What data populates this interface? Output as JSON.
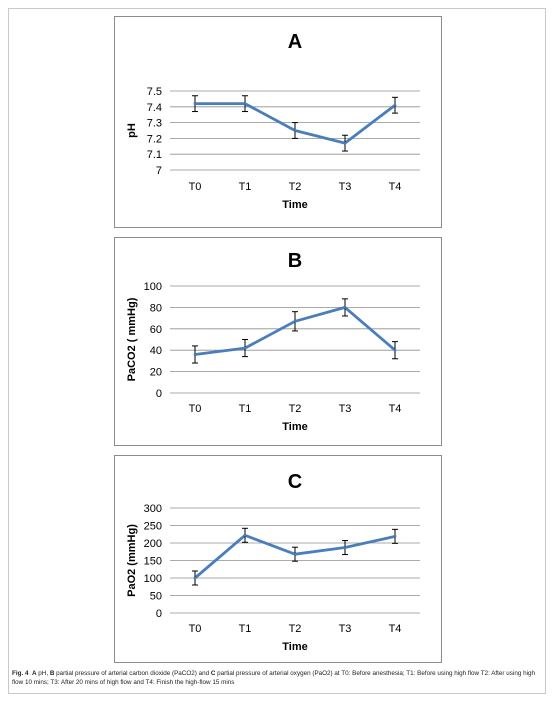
{
  "chart_data": [
    {
      "type": "line",
      "title": "A",
      "xlabel": "Time",
      "ylabel": "pH",
      "categories": [
        "T0",
        "T1",
        "T2",
        "T3",
        "T4"
      ],
      "values": [
        7.42,
        7.42,
        7.25,
        7.17,
        7.41
      ],
      "errors": [
        0.05,
        0.05,
        0.05,
        0.05,
        0.05
      ],
      "ylim": [
        7,
        7.5
      ],
      "yticks": [
        "7",
        "7.1",
        "7.2",
        "7.3",
        "7.4",
        "7.5"
      ],
      "grid": true,
      "color": "#4a7ebb"
    },
    {
      "type": "line",
      "title": "B",
      "xlabel": "Time",
      "ylabel": "PaCO2 ( mmHg)",
      "categories": [
        "T0",
        "T1",
        "T2",
        "T3",
        "T4"
      ],
      "values": [
        36,
        42,
        67,
        80,
        40
      ],
      "errors": [
        8,
        8,
        9,
        8,
        8
      ],
      "ylim": [
        0,
        100
      ],
      "yticks": [
        "0",
        "20",
        "40",
        "60",
        "80",
        "100"
      ],
      "grid": true,
      "color": "#4a7ebb"
    },
    {
      "type": "line",
      "title": "C",
      "xlabel": "Time",
      "ylabel": "PaO2 (mmHg)",
      "categories": [
        "T0",
        "T1",
        "T2",
        "T3",
        "T4"
      ],
      "values": [
        100,
        222,
        168,
        187,
        219
      ],
      "errors": [
        20,
        20,
        20,
        20,
        20
      ],
      "ylim": [
        0,
        300
      ],
      "yticks": [
        "0",
        "50",
        "100",
        "150",
        "200",
        "250",
        "300"
      ],
      "grid": true,
      "color": "#4a7ebb"
    }
  ],
  "caption": {
    "fig_label": "Fig. 4",
    "a_label": "A",
    "text_1": " pH, ",
    "b_label": "B",
    "text_2": " partial pressure of arterial carbon dioxide (PaCO2) and ",
    "c_label": "C",
    "text_3": " partial pressure of arterial oxygen (PaO2) at T0: Before anesthesia; T1: Before using high flow T2: After using high flow 10 mins; T3: After 20 mins of high flow and T4: Finish the high-flow 15 mins"
  }
}
